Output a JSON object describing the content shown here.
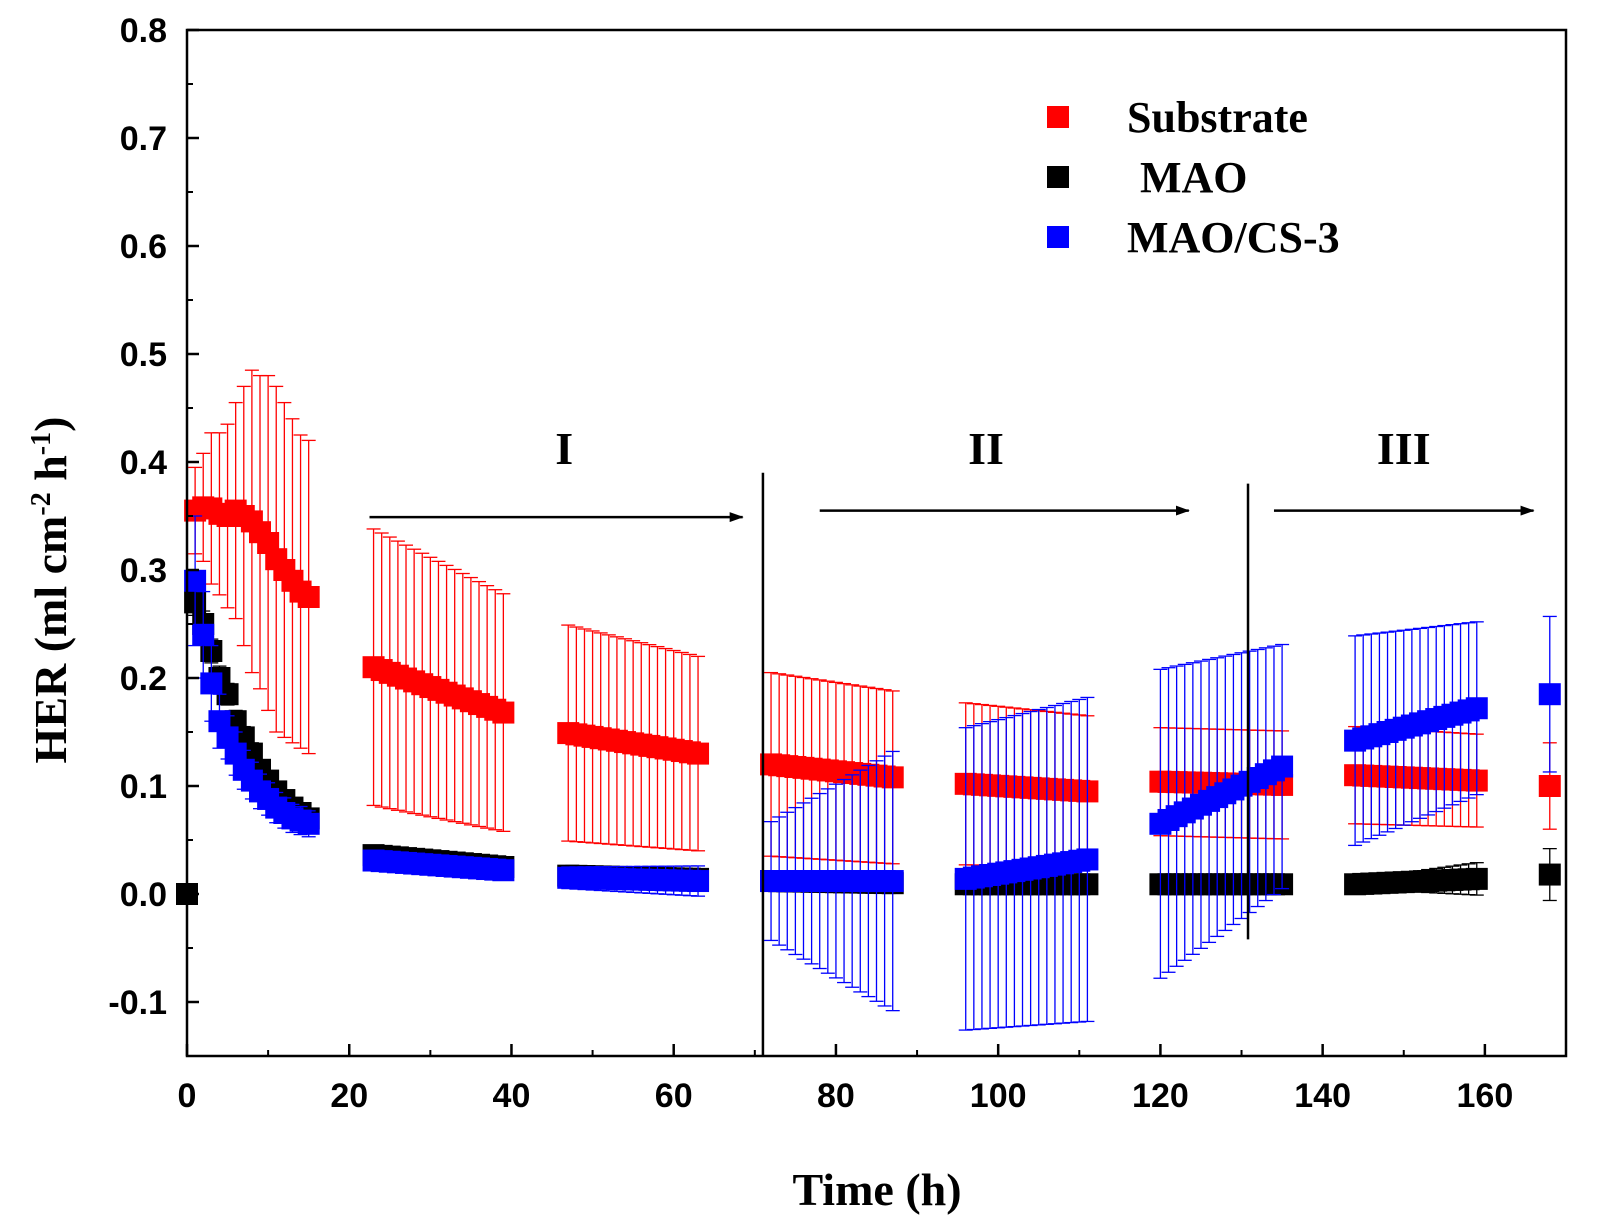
{
  "chart_data": {
    "type": "scatter",
    "title": "",
    "xlabel": "Time (h)",
    "ylabel": {
      "prefix": "HER (ml cm",
      "sup1": "-2",
      "middle": " h",
      "sup2": "-1",
      "suffix": ")"
    },
    "xlim": [
      0,
      170
    ],
    "ylim": [
      -0.15,
      0.8
    ],
    "xticks": [
      0,
      20,
      40,
      60,
      80,
      100,
      120,
      140,
      160
    ],
    "xtick_labels": [
      "0",
      "20",
      "40",
      "60",
      "80",
      "100",
      "120",
      "140",
      "160"
    ],
    "yticks": [
      -0.1,
      0.0,
      0.1,
      0.2,
      0.3,
      0.4,
      0.5,
      0.6,
      0.7,
      0.8
    ],
    "ytick_labels": [
      "-0.1",
      "0.0",
      "0.1",
      "0.2",
      "0.3",
      "0.4",
      "0.5",
      "0.6",
      "0.7",
      "0.8"
    ],
    "legend_position": "top-right",
    "series": [
      {
        "name": "Substrate",
        "color": "#ff0000",
        "segments": [
          {
            "t0": 1,
            "t1": 15,
            "n": 15,
            "y": [
              0.355,
              0.358,
              0.357,
              0.352,
              0.35,
              0.355,
              0.35,
              0.345,
              0.335,
              0.325,
              0.31,
              0.3,
              0.29,
              0.28,
              0.275
            ],
            "err": [
              0.04,
              0.05,
              0.07,
              0.075,
              0.085,
              0.1,
              0.12,
              0.14,
              0.145,
              0.155,
              0.16,
              0.155,
              0.15,
              0.145,
              0.145
            ]
          },
          {
            "t0": 23,
            "t1": 39,
            "n": 17,
            "y0": 0.21,
            "y1": 0.168,
            "e0": 0.128,
            "e1": 0.11
          },
          {
            "t0": 47,
            "t1": 63,
            "n": 17,
            "y0": 0.149,
            "y1": 0.13,
            "e0": 0.1,
            "e1": 0.09
          },
          {
            "t0": 72,
            "t1": 87,
            "n": 16,
            "y0": 0.12,
            "y1": 0.108,
            "e0": 0.085,
            "e1": 0.08
          },
          {
            "t0": 96,
            "t1": 111,
            "n": 16,
            "y0": 0.102,
            "y1": 0.095,
            "e0": 0.075,
            "e1": 0.07
          },
          {
            "t0": 120,
            "t1": 135,
            "n": 16,
            "y0": 0.104,
            "y1": 0.101,
            "e0": 0.05,
            "e1": 0.05
          },
          {
            "t0": 144,
            "t1": 159,
            "n": 16,
            "y0": 0.11,
            "y1": 0.105,
            "e0": 0.045,
            "e1": 0.043
          },
          {
            "t0": 168,
            "t1": 168,
            "n": 1,
            "y0": 0.1,
            "y1": 0.1,
            "e0": 0.04,
            "e1": 0.04
          }
        ]
      },
      {
        "name": "MAO",
        "color": "#000000",
        "segments": [
          {
            "t0": 0,
            "t1": 15,
            "n": 16,
            "y": [
              0.0,
              0.27,
              0.25,
              0.225,
              0.2,
              0.185,
              0.16,
              0.145,
              0.13,
              0.115,
              0.105,
              0.095,
              0.087,
              0.08,
              0.075,
              0.07
            ],
            "err": [
              0.0,
              0.012,
              0.012,
              0.011,
              0.011,
              0.01,
              0.01,
              0.01,
              0.01,
              0.009,
              0.009,
              0.009,
              0.009,
              0.008,
              0.008,
              0.008
            ]
          },
          {
            "t0": 23,
            "t1": 39,
            "n": 17,
            "y0": 0.036,
            "y1": 0.025,
            "e0": 0.006,
            "e1": 0.005
          },
          {
            "t0": 47,
            "t1": 63,
            "n": 17,
            "y0": 0.017,
            "y1": 0.014,
            "e0": 0.004,
            "e1": 0.004
          },
          {
            "t0": 72,
            "t1": 87,
            "n": 16,
            "y0": 0.012,
            "y1": 0.01,
            "e0": 0.003,
            "e1": 0.003
          },
          {
            "t0": 96,
            "t1": 111,
            "n": 16,
            "y0": 0.009,
            "y1": 0.009,
            "e0": 0.003,
            "e1": 0.003
          },
          {
            "t0": 120,
            "t1": 135,
            "n": 16,
            "y0": 0.009,
            "y1": 0.009,
            "e0": 0.003,
            "e1": 0.003
          },
          {
            "t0": 144,
            "t1": 159,
            "n": 16,
            "y0": 0.009,
            "y1": 0.014,
            "e0": 0.004,
            "e1": 0.015
          },
          {
            "t0": 168,
            "t1": 168,
            "n": 1,
            "y0": 0.018,
            "y1": 0.018,
            "e0": 0.024,
            "e1": 0.024
          }
        ]
      },
      {
        "name": "MAO/CS-3",
        "color": "#0000ff",
        "segments": [
          {
            "t0": 1,
            "t1": 15,
            "n": 15,
            "y": [
              0.29,
              0.24,
              0.195,
              0.16,
              0.145,
              0.13,
              0.115,
              0.105,
              0.095,
              0.088,
              0.08,
              0.075,
              0.07,
              0.068,
              0.065
            ],
            "err": [
              0.06,
              0.04,
              0.035,
              0.025,
              0.02,
              0.02,
              0.018,
              0.017,
              0.016,
              0.015,
              0.014,
              0.014,
              0.013,
              0.013,
              0.012
            ]
          },
          {
            "t0": 23,
            "t1": 39,
            "n": 17,
            "y0": 0.031,
            "y1": 0.022,
            "e0": 0.004,
            "e1": 0.004
          },
          {
            "t0": 47,
            "t1": 63,
            "n": 17,
            "y0": 0.015,
            "y1": 0.012,
            "e0": 0.01,
            "e1": 0.014
          },
          {
            "t0": 72,
            "t1": 87,
            "n": 16,
            "y0": 0.012,
            "y1": 0.012,
            "e0": 0.055,
            "e1": 0.12
          },
          {
            "t0": 96,
            "t1": 111,
            "n": 16,
            "y0": 0.014,
            "y1": 0.032,
            "e0": 0.14,
            "e1": 0.15
          },
          {
            "t0": 120,
            "t1": 135,
            "n": 16,
            "y0": 0.065,
            "y1": 0.118,
            "e0": 0.143,
            "e1": 0.113
          },
          {
            "t0": 144,
            "t1": 159,
            "n": 16,
            "y0": 0.142,
            "y1": 0.172,
            "e0": 0.097,
            "e1": 0.08
          },
          {
            "t0": 168,
            "t1": 168,
            "n": 1,
            "y0": 0.185,
            "y1": 0.185,
            "e0": 0.072,
            "e1": 0.072
          }
        ]
      }
    ],
    "annotations": {
      "regions": [
        {
          "label": "I",
          "label_x": 46.5,
          "label_y": 0.398,
          "arrow_from": [
            22.5,
            0.349
          ],
          "arrow_to": [
            68.5,
            0.349
          ]
        },
        {
          "label": "II",
          "label_x": 98.5,
          "label_y": 0.398,
          "arrow_from": [
            78,
            0.355
          ],
          "arrow_to": [
            123.5,
            0.355
          ]
        },
        {
          "label": "III",
          "label_x": 150,
          "label_y": 0.398,
          "arrow_from": [
            134,
            0.355
          ],
          "arrow_to": [
            166,
            0.355
          ]
        }
      ],
      "dividers": [
        {
          "x": 71,
          "y_from": -0.15,
          "y_to": 0.39
        },
        {
          "x": 130.8,
          "y_from": -0.042,
          "y_to": 0.38
        }
      ]
    }
  }
}
